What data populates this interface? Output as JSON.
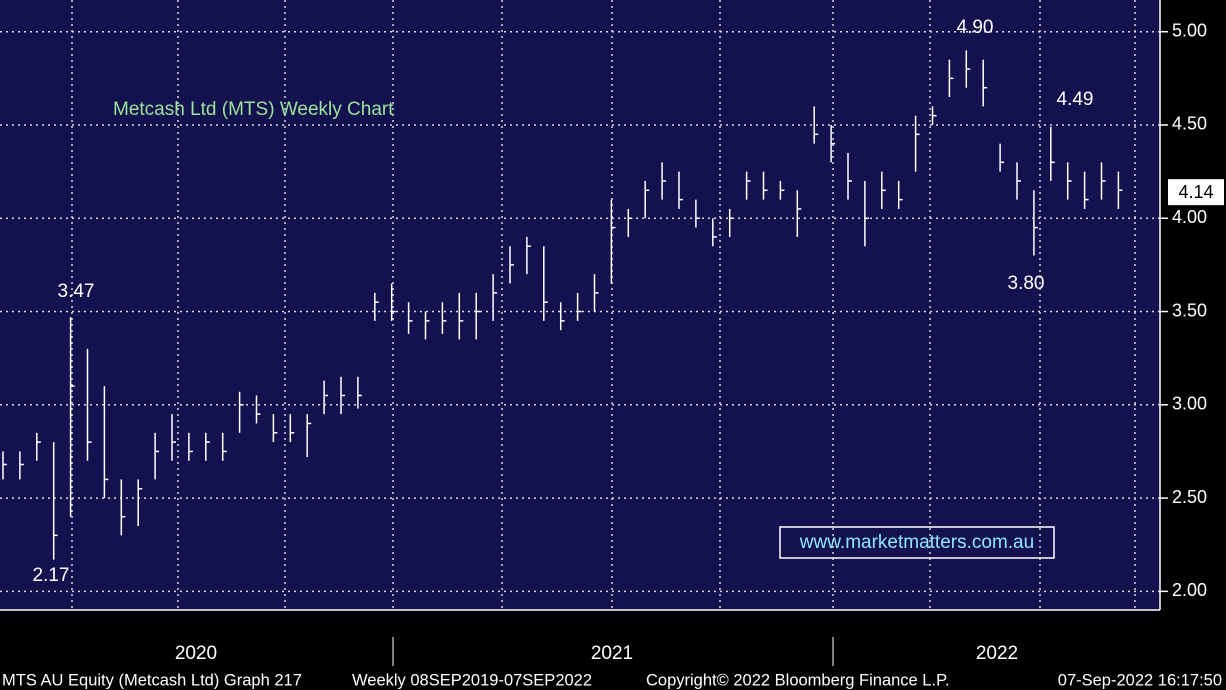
{
  "chart_data": {
    "type": "ohlc",
    "title": "Metcash Ltd (MTS) Weekly Chart",
    "watermark": "www.marketmatters.com.au",
    "categories": [
      null,
      null,
      null,
      null,
      null,
      null,
      null,
      null,
      null,
      null,
      null,
      null,
      null,
      null,
      null,
      null,
      null,
      null,
      null,
      null,
      null,
      null,
      null,
      null,
      null,
      null,
      null,
      null,
      null,
      null,
      null,
      null,
      null,
      null,
      null,
      null,
      null,
      null,
      null,
      null,
      null,
      null,
      null,
      null,
      null,
      null,
      null,
      null,
      null,
      null,
      null,
      null,
      null,
      null,
      null,
      null,
      null,
      null,
      null,
      null,
      null,
      null,
      null,
      null,
      null,
      null,
      null
    ],
    "high": [
      2.75,
      2.75,
      2.85,
      2.8,
      3.47,
      3.3,
      3.1,
      2.6,
      2.6,
      2.85,
      2.95,
      2.85,
      2.85,
      2.85,
      3.07,
      3.05,
      2.95,
      2.95,
      2.95,
      3.13,
      3.15,
      3.15,
      3.6,
      3.65,
      3.55,
      3.5,
      3.55,
      3.6,
      3.6,
      3.7,
      3.85,
      3.9,
      3.85,
      3.55,
      3.6,
      3.7,
      4.1,
      4.05,
      4.2,
      4.3,
      4.25,
      4.1,
      4.0,
      4.05,
      4.25,
      4.25,
      4.2,
      4.15,
      4.6,
      4.5,
      4.35,
      4.2,
      4.25,
      4.2,
      4.55,
      4.6,
      4.85,
      4.9,
      4.85,
      4.4,
      4.3,
      4.15,
      4.49,
      4.3,
      4.25,
      4.3,
      4.25
    ],
    "low": [
      2.6,
      2.6,
      2.7,
      2.17,
      2.4,
      2.7,
      2.5,
      2.3,
      2.35,
      2.6,
      2.7,
      2.7,
      2.7,
      2.7,
      2.85,
      2.9,
      2.8,
      2.8,
      2.72,
      2.95,
      2.95,
      2.98,
      3.45,
      3.45,
      3.38,
      3.35,
      3.38,
      3.35,
      3.35,
      3.45,
      3.65,
      3.7,
      3.45,
      3.4,
      3.45,
      3.5,
      3.65,
      3.9,
      4.0,
      4.1,
      4.05,
      3.95,
      3.85,
      3.9,
      4.1,
      4.1,
      4.1,
      3.9,
      4.4,
      4.3,
      4.1,
      3.85,
      4.05,
      4.05,
      4.25,
      4.5,
      4.65,
      4.7,
      4.6,
      4.25,
      4.1,
      3.8,
      4.2,
      4.1,
      4.05,
      4.1,
      4.05
    ],
    "close": [
      2.68,
      2.68,
      2.8,
      2.3,
      3.1,
      2.8,
      2.6,
      2.4,
      2.55,
      2.75,
      2.8,
      2.75,
      2.8,
      2.75,
      3.0,
      2.95,
      2.85,
      2.85,
      2.9,
      3.05,
      3.05,
      3.05,
      3.55,
      3.5,
      3.45,
      3.45,
      3.45,
      3.45,
      3.5,
      3.6,
      3.75,
      3.85,
      3.55,
      3.45,
      3.5,
      3.6,
      3.95,
      4.0,
      4.15,
      4.2,
      4.1,
      4.0,
      3.9,
      4.0,
      4.2,
      4.15,
      4.15,
      4.05,
      4.45,
      4.4,
      4.2,
      4.0,
      4.15,
      4.1,
      4.45,
      4.55,
      4.75,
      4.8,
      4.7,
      4.3,
      4.2,
      3.95,
      4.3,
      4.2,
      4.1,
      4.2,
      4.15
    ],
    "last_price": 4.14,
    "ylim": [
      1.9,
      5.17
    ],
    "yticks": [
      {
        "value": 2,
        "label": "2.00"
      },
      {
        "value": 2.5,
        "label": "2.50"
      },
      {
        "value": 3,
        "label": "3.00"
      },
      {
        "value": 3.5,
        "label": "3.50"
      },
      {
        "value": 4,
        "label": "4.00"
      },
      {
        "value": 4.5,
        "label": "4.50"
      },
      {
        "value": 5,
        "label": "5.00"
      }
    ],
    "year_labels": [
      "2020",
      "2021",
      "2022"
    ],
    "annotations": [
      "4.90",
      "4.49",
      "3.80",
      "3.47",
      "2.17"
    ],
    "grid": true,
    "color": "#ffffff",
    "background": "#14124e"
  },
  "footer": [
    "MTS AU Equity (Metcash Ltd) Graph 217",
    "Weekly 08SEP2019-07SEP2022",
    "Copyright© 2022 Bloomberg Finance L.P.",
    "07-Sep-2022 16:17:50"
  ]
}
